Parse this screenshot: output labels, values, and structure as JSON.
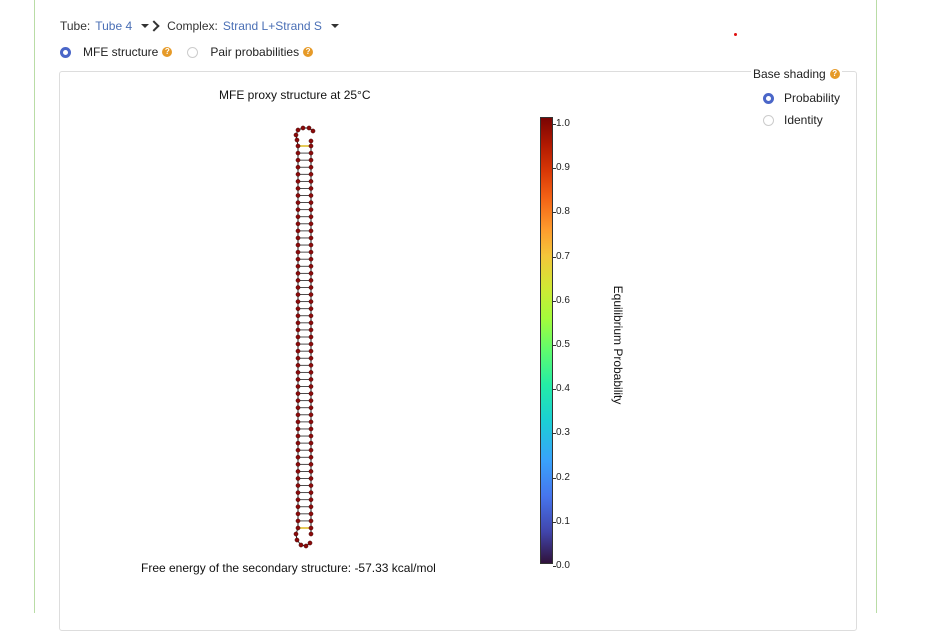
{
  "selector": {
    "tube_label": "Tube:",
    "tube_value": "Tube 4",
    "complex_label": "Complex:",
    "complex_value": "Strand L+Strand S"
  },
  "view_mode": {
    "options": [
      {
        "label": "MFE structure",
        "selected": true
      },
      {
        "label": "Pair probabilities",
        "selected": false
      }
    ],
    "help_icon": "?"
  },
  "base_shading": {
    "title": "Base shading",
    "options": [
      {
        "label": "Probability",
        "selected": true
      },
      {
        "label": "Identity",
        "selected": false
      }
    ]
  },
  "plot": {
    "title": "MFE proxy structure at 25°C",
    "free_energy_text": "Free energy of the secondary structure: -57.33 kcal/mol",
    "base_color": "#8b0b0b",
    "backbone_color": "#222222",
    "pair_color": "#222222",
    "unpaired_end_pair_color": "#e0c030"
  },
  "colorbar": {
    "label": "Equilibrium Probability",
    "ticks": [
      "0.0",
      "0.1",
      "0.2",
      "0.3",
      "0.4",
      "0.5",
      "0.6",
      "0.7",
      "0.8",
      "0.9",
      "1.0"
    ],
    "range": [
      0,
      1
    ]
  }
}
